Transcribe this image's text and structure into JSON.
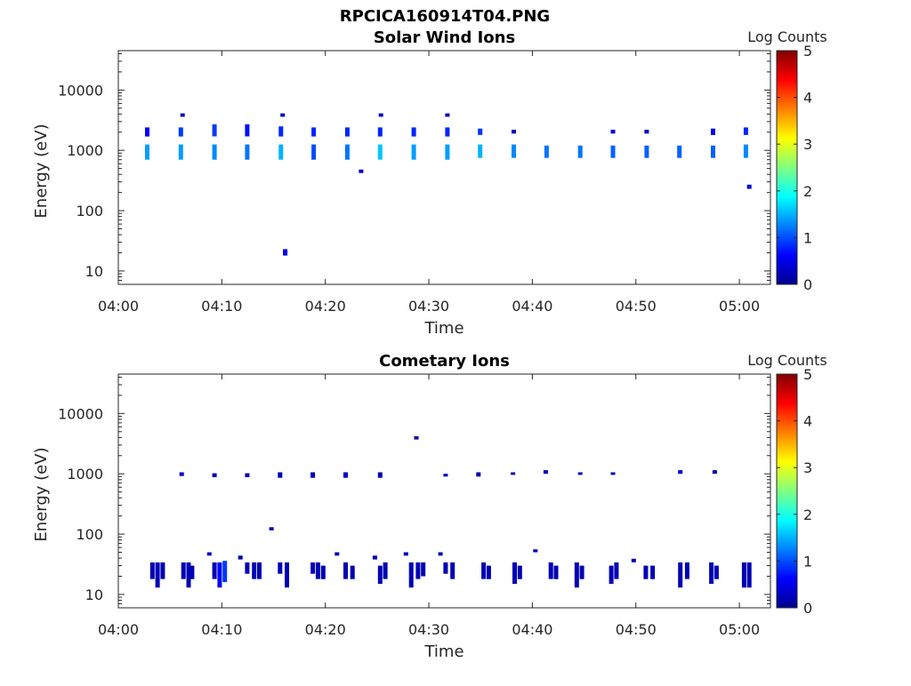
{
  "figure_title": "RPCICA160914T04.PNG",
  "colors": {
    "axis": "#262626",
    "colormap": [
      "#00008f",
      "#0000ff",
      "#0080ff",
      "#00ffff",
      "#80ff80",
      "#ffff00",
      "#ff8000",
      "#ff0000",
      "#800000"
    ]
  },
  "chart_data": [
    {
      "type": "heatmap",
      "title": "Solar Wind Ions",
      "xlabel": "Time",
      "ylabel": "Energy (eV)",
      "x_unit": "time (HH:MM) on the plot day",
      "xlim": [
        "04:00",
        "05:03"
      ],
      "ylim": [
        6,
        45000
      ],
      "yscale": "log",
      "xticks": [
        "04:00",
        "04:10",
        "04:20",
        "04:30",
        "04:40",
        "04:50",
        "05:00"
      ],
      "yticks": [
        10,
        100,
        1000,
        10000
      ],
      "yticklabels": [
        "10",
        "100",
        "1000",
        "10000"
      ],
      "colorbar": {
        "label": "Log Counts",
        "range": [
          0,
          5
        ],
        "ticks": [
          0,
          1,
          2,
          3,
          4,
          5
        ]
      },
      "patches": [
        {
          "t": "04:02:50",
          "e_lo": 700,
          "e_hi": 1250,
          "v": 1.4
        },
        {
          "t": "04:02:50",
          "e_lo": 1700,
          "e_hi": 2400,
          "v": 0.6
        },
        {
          "t": "04:06:05",
          "e_lo": 700,
          "e_hi": 1250,
          "v": 1.4
        },
        {
          "t": "04:06:05",
          "e_lo": 1700,
          "e_hi": 2400,
          "v": 0.9
        },
        {
          "t": "04:06:15",
          "e_lo": 3600,
          "e_hi": 4100,
          "v": 0.3
        },
        {
          "t": "04:09:20",
          "e_lo": 700,
          "e_hi": 1250,
          "v": 1.3
        },
        {
          "t": "04:09:20",
          "e_lo": 1700,
          "e_hi": 2700,
          "v": 0.9
        },
        {
          "t": "04:12:30",
          "e_lo": 700,
          "e_hi": 1250,
          "v": 1.2
        },
        {
          "t": "04:12:30",
          "e_lo": 1700,
          "e_hi": 2700,
          "v": 0.7
        },
        {
          "t": "04:15:45",
          "e_lo": 700,
          "e_hi": 1250,
          "v": 1.5
        },
        {
          "t": "04:15:45",
          "e_lo": 1700,
          "e_hi": 2500,
          "v": 0.8
        },
        {
          "t": "04:15:55",
          "e_lo": 3600,
          "e_hi": 4100,
          "v": 0.3
        },
        {
          "t": "04:16:10",
          "e_lo": 18,
          "e_hi": 23,
          "v": 0.5
        },
        {
          "t": "04:18:55",
          "e_lo": 700,
          "e_hi": 1250,
          "v": 1.0
        },
        {
          "t": "04:18:55",
          "e_lo": 1700,
          "e_hi": 2400,
          "v": 0.8
        },
        {
          "t": "04:22:10",
          "e_lo": 700,
          "e_hi": 1250,
          "v": 1.2
        },
        {
          "t": "04:22:10",
          "e_lo": 1700,
          "e_hi": 2400,
          "v": 0.8
        },
        {
          "t": "04:23:30",
          "e_lo": 420,
          "e_hi": 480,
          "v": 0.3
        },
        {
          "t": "04:25:20",
          "e_lo": 700,
          "e_hi": 1250,
          "v": 1.6
        },
        {
          "t": "04:25:20",
          "e_lo": 1700,
          "e_hi": 2400,
          "v": 0.8
        },
        {
          "t": "04:25:25",
          "e_lo": 3600,
          "e_hi": 4100,
          "v": 0.3
        },
        {
          "t": "04:28:35",
          "e_lo": 700,
          "e_hi": 1250,
          "v": 1.4
        },
        {
          "t": "04:28:35",
          "e_lo": 1700,
          "e_hi": 2400,
          "v": 0.8
        },
        {
          "t": "04:31:50",
          "e_lo": 700,
          "e_hi": 1250,
          "v": 1.4
        },
        {
          "t": "04:31:50",
          "e_lo": 1700,
          "e_hi": 2400,
          "v": 0.8
        },
        {
          "t": "04:31:50",
          "e_lo": 3600,
          "e_hi": 4100,
          "v": 0.3
        },
        {
          "t": "04:35:00",
          "e_lo": 750,
          "e_hi": 1250,
          "v": 1.5
        },
        {
          "t": "04:35:00",
          "e_lo": 1800,
          "e_hi": 2300,
          "v": 0.9
        },
        {
          "t": "04:38:15",
          "e_lo": 750,
          "e_hi": 1250,
          "v": 1.3
        },
        {
          "t": "04:38:15",
          "e_lo": 1900,
          "e_hi": 2200,
          "v": 0.3
        },
        {
          "t": "04:41:25",
          "e_lo": 750,
          "e_hi": 1200,
          "v": 1.2
        },
        {
          "t": "04:44:40",
          "e_lo": 750,
          "e_hi": 1200,
          "v": 1.2
        },
        {
          "t": "04:47:50",
          "e_lo": 750,
          "e_hi": 1200,
          "v": 1.1
        },
        {
          "t": "04:47:50",
          "e_lo": 1900,
          "e_hi": 2200,
          "v": 0.3
        },
        {
          "t": "04:51:05",
          "e_lo": 750,
          "e_hi": 1200,
          "v": 1.1
        },
        {
          "t": "04:51:05",
          "e_lo": 1900,
          "e_hi": 2200,
          "v": 0.3
        },
        {
          "t": "04:54:15",
          "e_lo": 750,
          "e_hi": 1200,
          "v": 1.1
        },
        {
          "t": "04:57:30",
          "e_lo": 750,
          "e_hi": 1200,
          "v": 1.1
        },
        {
          "t": "04:57:30",
          "e_lo": 1800,
          "e_hi": 2300,
          "v": 0.5
        },
        {
          "t": "05:00:40",
          "e_lo": 750,
          "e_hi": 1250,
          "v": 1.3
        },
        {
          "t": "05:00:40",
          "e_lo": 1800,
          "e_hi": 2400,
          "v": 0.8
        },
        {
          "t": "05:01:00",
          "e_lo": 230,
          "e_hi": 270,
          "v": 0.3
        }
      ]
    },
    {
      "type": "heatmap",
      "title": "Cometary Ions",
      "xlabel": "Time",
      "ylabel": "Energy (eV)",
      "x_unit": "time (HH:MM) on the plot day",
      "xlim": [
        "04:00",
        "05:03"
      ],
      "ylim": [
        6,
        45000
      ],
      "yscale": "log",
      "xticks": [
        "04:00",
        "04:10",
        "04:20",
        "04:30",
        "04:40",
        "04:50",
        "05:00"
      ],
      "yticks": [
        10,
        100,
        1000,
        10000
      ],
      "yticklabels": [
        "10",
        "100",
        "1000",
        "10000"
      ],
      "colorbar": {
        "label": "Log Counts",
        "range": [
          0,
          5
        ],
        "ticks": [
          0,
          1,
          2,
          3,
          4,
          5
        ]
      },
      "patches": [
        {
          "t": "04:03:20",
          "e_lo": 18,
          "e_hi": 34,
          "v": 0.2
        },
        {
          "t": "04:03:50",
          "e_lo": 13,
          "e_hi": 34,
          "v": 0.2
        },
        {
          "t": "04:04:20",
          "e_lo": 18,
          "e_hi": 34,
          "v": 0.2
        },
        {
          "t": "04:06:20",
          "e_lo": 18,
          "e_hi": 34,
          "v": 0.2
        },
        {
          "t": "04:06:50",
          "e_lo": 13,
          "e_hi": 34,
          "v": 0.2
        },
        {
          "t": "04:07:10",
          "e_lo": 18,
          "e_hi": 30,
          "v": 0.2
        },
        {
          "t": "04:09:20",
          "e_lo": 18,
          "e_hi": 34,
          "v": 0.2
        },
        {
          "t": "04:09:50",
          "e_lo": 13,
          "e_hi": 34,
          "v": 0.6
        },
        {
          "t": "04:10:20",
          "e_lo": 16,
          "e_hi": 36,
          "v": 0.9
        },
        {
          "t": "04:12:30",
          "e_lo": 22,
          "e_hi": 34,
          "v": 0.2
        },
        {
          "t": "04:13:10",
          "e_lo": 18,
          "e_hi": 34,
          "v": 0.2
        },
        {
          "t": "04:13:40",
          "e_lo": 18,
          "e_hi": 34,
          "v": 0.2
        },
        {
          "t": "04:15:40",
          "e_lo": 22,
          "e_hi": 34,
          "v": 0.2
        },
        {
          "t": "04:16:20",
          "e_lo": 13,
          "e_hi": 34,
          "v": 0.2
        },
        {
          "t": "04:18:50",
          "e_lo": 22,
          "e_hi": 34,
          "v": 0.2
        },
        {
          "t": "04:19:20",
          "e_lo": 18,
          "e_hi": 34,
          "v": 0.2
        },
        {
          "t": "04:19:50",
          "e_lo": 18,
          "e_hi": 30,
          "v": 0.2
        },
        {
          "t": "04:22:00",
          "e_lo": 18,
          "e_hi": 34,
          "v": 0.2
        },
        {
          "t": "04:22:40",
          "e_lo": 18,
          "e_hi": 30,
          "v": 0.2
        },
        {
          "t": "04:25:20",
          "e_lo": 15,
          "e_hi": 30,
          "v": 0.2
        },
        {
          "t": "04:25:50",
          "e_lo": 18,
          "e_hi": 34,
          "v": 0.2
        },
        {
          "t": "04:28:20",
          "e_lo": 13,
          "e_hi": 34,
          "v": 0.2
        },
        {
          "t": "04:29:00",
          "e_lo": 18,
          "e_hi": 34,
          "v": 0.2
        },
        {
          "t": "04:29:30",
          "e_lo": 20,
          "e_hi": 34,
          "v": 0.2
        },
        {
          "t": "04:31:40",
          "e_lo": 22,
          "e_hi": 34,
          "v": 0.2
        },
        {
          "t": "04:32:20",
          "e_lo": 18,
          "e_hi": 34,
          "v": 0.2
        },
        {
          "t": "04:35:20",
          "e_lo": 18,
          "e_hi": 34,
          "v": 0.2
        },
        {
          "t": "04:35:50",
          "e_lo": 18,
          "e_hi": 30,
          "v": 0.2
        },
        {
          "t": "04:38:20",
          "e_lo": 15,
          "e_hi": 34,
          "v": 0.2
        },
        {
          "t": "04:38:50",
          "e_lo": 18,
          "e_hi": 30,
          "v": 0.2
        },
        {
          "t": "04:41:50",
          "e_lo": 18,
          "e_hi": 34,
          "v": 0.2
        },
        {
          "t": "04:42:20",
          "e_lo": 18,
          "e_hi": 30,
          "v": 0.2
        },
        {
          "t": "04:44:20",
          "e_lo": 13,
          "e_hi": 34,
          "v": 0.2
        },
        {
          "t": "04:44:50",
          "e_lo": 18,
          "e_hi": 30,
          "v": 0.2
        },
        {
          "t": "04:47:40",
          "e_lo": 15,
          "e_hi": 30,
          "v": 0.2
        },
        {
          "t": "04:48:10",
          "e_lo": 18,
          "e_hi": 34,
          "v": 0.2
        },
        {
          "t": "04:51:00",
          "e_lo": 18,
          "e_hi": 30,
          "v": 0.2
        },
        {
          "t": "04:51:40",
          "e_lo": 18,
          "e_hi": 30,
          "v": 0.2
        },
        {
          "t": "04:54:20",
          "e_lo": 13,
          "e_hi": 34,
          "v": 0.2
        },
        {
          "t": "04:55:00",
          "e_lo": 18,
          "e_hi": 34,
          "v": 0.2
        },
        {
          "t": "04:57:20",
          "e_lo": 15,
          "e_hi": 34,
          "v": 0.2
        },
        {
          "t": "04:57:50",
          "e_lo": 18,
          "e_hi": 30,
          "v": 0.2
        },
        {
          "t": "05:00:30",
          "e_lo": 13,
          "e_hi": 34,
          "v": 0.2
        },
        {
          "t": "05:01:00",
          "e_lo": 13,
          "e_hi": 34,
          "v": 0.2
        },
        {
          "t": "04:06:10",
          "e_lo": 920,
          "e_hi": 1060,
          "v": 0.3
        },
        {
          "t": "04:09:20",
          "e_lo": 880,
          "e_hi": 1020,
          "v": 0.2
        },
        {
          "t": "04:12:30",
          "e_lo": 880,
          "e_hi": 1020,
          "v": 0.2
        },
        {
          "t": "04:15:40",
          "e_lo": 860,
          "e_hi": 1060,
          "v": 0.2
        },
        {
          "t": "04:18:50",
          "e_lo": 860,
          "e_hi": 1060,
          "v": 0.2
        },
        {
          "t": "04:22:00",
          "e_lo": 860,
          "e_hi": 1060,
          "v": 0.3
        },
        {
          "t": "04:25:20",
          "e_lo": 860,
          "e_hi": 1060,
          "v": 0.2
        },
        {
          "t": "04:31:40",
          "e_lo": 900,
          "e_hi": 1000,
          "v": 0.2
        },
        {
          "t": "04:34:50",
          "e_lo": 900,
          "e_hi": 1060,
          "v": 0.2
        },
        {
          "t": "04:38:10",
          "e_lo": 960,
          "e_hi": 1060,
          "v": 0.2
        },
        {
          "t": "04:41:20",
          "e_lo": 1000,
          "e_hi": 1150,
          "v": 0.3
        },
        {
          "t": "04:44:40",
          "e_lo": 960,
          "e_hi": 1060,
          "v": 0.2
        },
        {
          "t": "04:47:50",
          "e_lo": 960,
          "e_hi": 1060,
          "v": 0.2
        },
        {
          "t": "04:54:20",
          "e_lo": 1000,
          "e_hi": 1150,
          "v": 0.3
        },
        {
          "t": "04:57:40",
          "e_lo": 1000,
          "e_hi": 1150,
          "v": 0.2
        },
        {
          "t": "04:28:50",
          "e_lo": 3700,
          "e_hi": 4200,
          "v": 0.2
        },
        {
          "t": "04:14:50",
          "e_lo": 115,
          "e_hi": 130,
          "v": 0.2
        },
        {
          "t": "04:08:50",
          "e_lo": 44,
          "e_hi": 50,
          "v": 0.3
        },
        {
          "t": "04:11:50",
          "e_lo": 38,
          "e_hi": 44,
          "v": 0.2
        },
        {
          "t": "04:21:10",
          "e_lo": 44,
          "e_hi": 50,
          "v": 0.2
        },
        {
          "t": "04:24:50",
          "e_lo": 38,
          "e_hi": 44,
          "v": 0.2
        },
        {
          "t": "04:27:50",
          "e_lo": 44,
          "e_hi": 50,
          "v": 0.2
        },
        {
          "t": "04:31:10",
          "e_lo": 44,
          "e_hi": 50,
          "v": 0.2
        },
        {
          "t": "04:40:20",
          "e_lo": 50,
          "e_hi": 56,
          "v": 0.2
        },
        {
          "t": "04:49:50",
          "e_lo": 34,
          "e_hi": 39,
          "v": 0.2
        }
      ]
    }
  ]
}
